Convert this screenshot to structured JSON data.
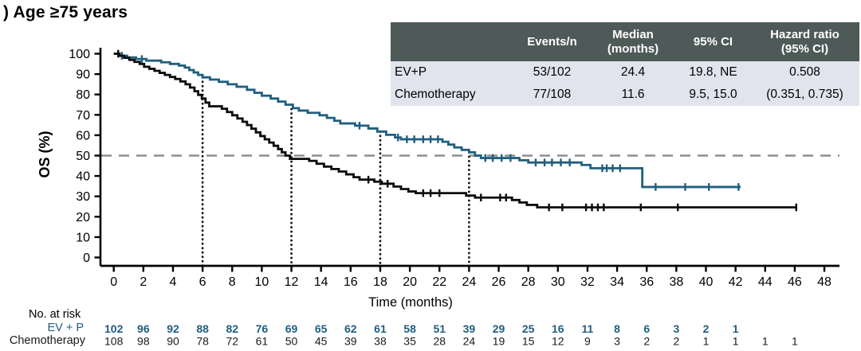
{
  "title": ") Age ≥75 years",
  "stats_table": {
    "header_bg": "#4e5a58",
    "row_bg": "#e2e4ed",
    "headers": [
      "",
      "Events/n",
      "Median\n(months)",
      "95% CI",
      "Hazard ratio\n(95% CI)"
    ],
    "rows": [
      [
        "EV+P",
        "53/102",
        "24.4",
        "19.8, NE",
        "0.508"
      ],
      [
        "Chemotherapy",
        "77/108",
        "11.6",
        "9.5, 15.0",
        "(0.351, 0.735)"
      ]
    ]
  },
  "chart_data": {
    "type": "line",
    "subtype": "kaplan-meier-step",
    "xlabel": "Time (months)",
    "ylabel": "OS (%)",
    "xlim": [
      0,
      48
    ],
    "xstep": 2,
    "ylim": [
      0,
      100
    ],
    "ystep": 10,
    "grid": false,
    "reference_lines": {
      "horizontal_dashed_pct": 50,
      "horizontal_dashed_color": "#8e8e8e",
      "vertical_dotted_months": [
        6,
        12,
        18,
        24
      ],
      "vertical_dotted_color": "#161616"
    },
    "series": [
      {
        "name": "EV+P",
        "color": "#1f5f7f",
        "end_month": 42.35,
        "points": [
          [
            0,
            100
          ],
          [
            0.4,
            99
          ],
          [
            0.9,
            98.2
          ],
          [
            1.5,
            97.4
          ],
          [
            2.2,
            96.6
          ],
          [
            3.2,
            95.8
          ],
          [
            3.8,
            95
          ],
          [
            4.4,
            94.2
          ],
          [
            4.8,
            93.2
          ],
          [
            5.1,
            92
          ],
          [
            5.4,
            90.8
          ],
          [
            5.7,
            89.6
          ],
          [
            6,
            88.4
          ],
          [
            6.5,
            87.3
          ],
          [
            7.1,
            86.2
          ],
          [
            7.7,
            85
          ],
          [
            8.3,
            83.8
          ],
          [
            9,
            82.3
          ],
          [
            9.5,
            80.8
          ],
          [
            10,
            79.4
          ],
          [
            10.6,
            78
          ],
          [
            11.1,
            76.5
          ],
          [
            11.6,
            75
          ],
          [
            12.1,
            73.3
          ],
          [
            12.5,
            72.1
          ],
          [
            13.1,
            71
          ],
          [
            13.9,
            69.8
          ],
          [
            14.4,
            68.5
          ],
          [
            14.9,
            67.1
          ],
          [
            15.3,
            65.8
          ],
          [
            16.3,
            64.7
          ],
          [
            17.2,
            63.3
          ],
          [
            17.8,
            61.8
          ],
          [
            18.4,
            60.2
          ],
          [
            19,
            58.9
          ],
          [
            19.4,
            58
          ],
          [
            22.2,
            56.8
          ],
          [
            22.6,
            55.4
          ],
          [
            23,
            54
          ],
          [
            23.5,
            52.8
          ],
          [
            24,
            51.6
          ],
          [
            24.4,
            50
          ],
          [
            24.8,
            48.8
          ],
          [
            27.4,
            47.7
          ],
          [
            28,
            46.6
          ],
          [
            31.6,
            45.4
          ],
          [
            32.2,
            43.8
          ],
          [
            35.7,
            34.6
          ]
        ],
        "censor_months": [
          0.55,
          1.9,
          16.6,
          19.2,
          19.8,
          20.3,
          20.9,
          21.4,
          21.9,
          25.1,
          25.6,
          26.2,
          26.8,
          28.5,
          29.1,
          29.6,
          30.2,
          30.8,
          33.0,
          33.3,
          33.7,
          34.2,
          36.6,
          38.6,
          40.2,
          42.2
        ]
      },
      {
        "name": "Chemotherapy",
        "color": "#0c0c0c",
        "end_month": 46.15,
        "points": [
          [
            0,
            100
          ],
          [
            0.35,
            99
          ],
          [
            0.7,
            98
          ],
          [
            1.05,
            97
          ],
          [
            1.4,
            96
          ],
          [
            1.75,
            95
          ],
          [
            2.05,
            93.6
          ],
          [
            2.4,
            92.6
          ],
          [
            2.75,
            91.6
          ],
          [
            3.1,
            90.6
          ],
          [
            3.45,
            89.6
          ],
          [
            3.8,
            88.6
          ],
          [
            4.15,
            87.6
          ],
          [
            4.5,
            86.4
          ],
          [
            4.85,
            85
          ],
          [
            5.15,
            83.4
          ],
          [
            5.45,
            81.6
          ],
          [
            5.7,
            79.8
          ],
          [
            5.95,
            78
          ],
          [
            6.2,
            76
          ],
          [
            6.45,
            74.2
          ],
          [
            7.3,
            73
          ],
          [
            7.65,
            71.4
          ],
          [
            8,
            69.8
          ],
          [
            8.35,
            68.2
          ],
          [
            8.7,
            66.6
          ],
          [
            9,
            65
          ],
          [
            9.3,
            63.2
          ],
          [
            9.6,
            61.4
          ],
          [
            9.9,
            59.6
          ],
          [
            10.2,
            58
          ],
          [
            10.5,
            56.4
          ],
          [
            10.8,
            54.8
          ],
          [
            11.1,
            53.2
          ],
          [
            11.35,
            51.6
          ],
          [
            11.6,
            50
          ],
          [
            11.9,
            48.4
          ],
          [
            13.2,
            47.4
          ],
          [
            13.7,
            46
          ],
          [
            14.2,
            44.6
          ],
          [
            14.7,
            43.4
          ],
          [
            15.2,
            42.2
          ],
          [
            15.7,
            40.8
          ],
          [
            16.2,
            39.4
          ],
          [
            16.6,
            38.2
          ],
          [
            17.6,
            37.2
          ],
          [
            18.1,
            36.2
          ],
          [
            18.9,
            34.8
          ],
          [
            19.4,
            33.6
          ],
          [
            19.9,
            32.4
          ],
          [
            20.4,
            31.6
          ],
          [
            23.8,
            30.4
          ],
          [
            24.4,
            29.4
          ],
          [
            26.9,
            28.2
          ],
          [
            27.4,
            27
          ],
          [
            27.9,
            25.8
          ],
          [
            28.6,
            24.6
          ]
        ],
        "censor_months": [
          0.3,
          17.2,
          18.5,
          20.9,
          21.4,
          22.0,
          24.8,
          26.1,
          26.5,
          29.4,
          30.3,
          31.9,
          32.3,
          32.7,
          33.1,
          35.6,
          38.1,
          46.1
        ]
      }
    ],
    "at_risk": {
      "title": "No. at risk",
      "month_step": 2,
      "rows": [
        {
          "label": "EV + P",
          "bold": true,
          "color": "#1f5f7f",
          "values": [
            102,
            96,
            92,
            88,
            82,
            76,
            69,
            65,
            62,
            61,
            58,
            51,
            39,
            29,
            25,
            16,
            11,
            8,
            6,
            3,
            2,
            1
          ]
        },
        {
          "label": "Chemotherapy",
          "bold": false,
          "color": "#1a1a1a",
          "values": [
            108,
            98,
            90,
            78,
            72,
            61,
            50,
            45,
            39,
            38,
            35,
            28,
            24,
            19,
            15,
            12,
            9,
            3,
            2,
            2,
            1,
            1,
            1,
            1
          ]
        }
      ]
    }
  }
}
